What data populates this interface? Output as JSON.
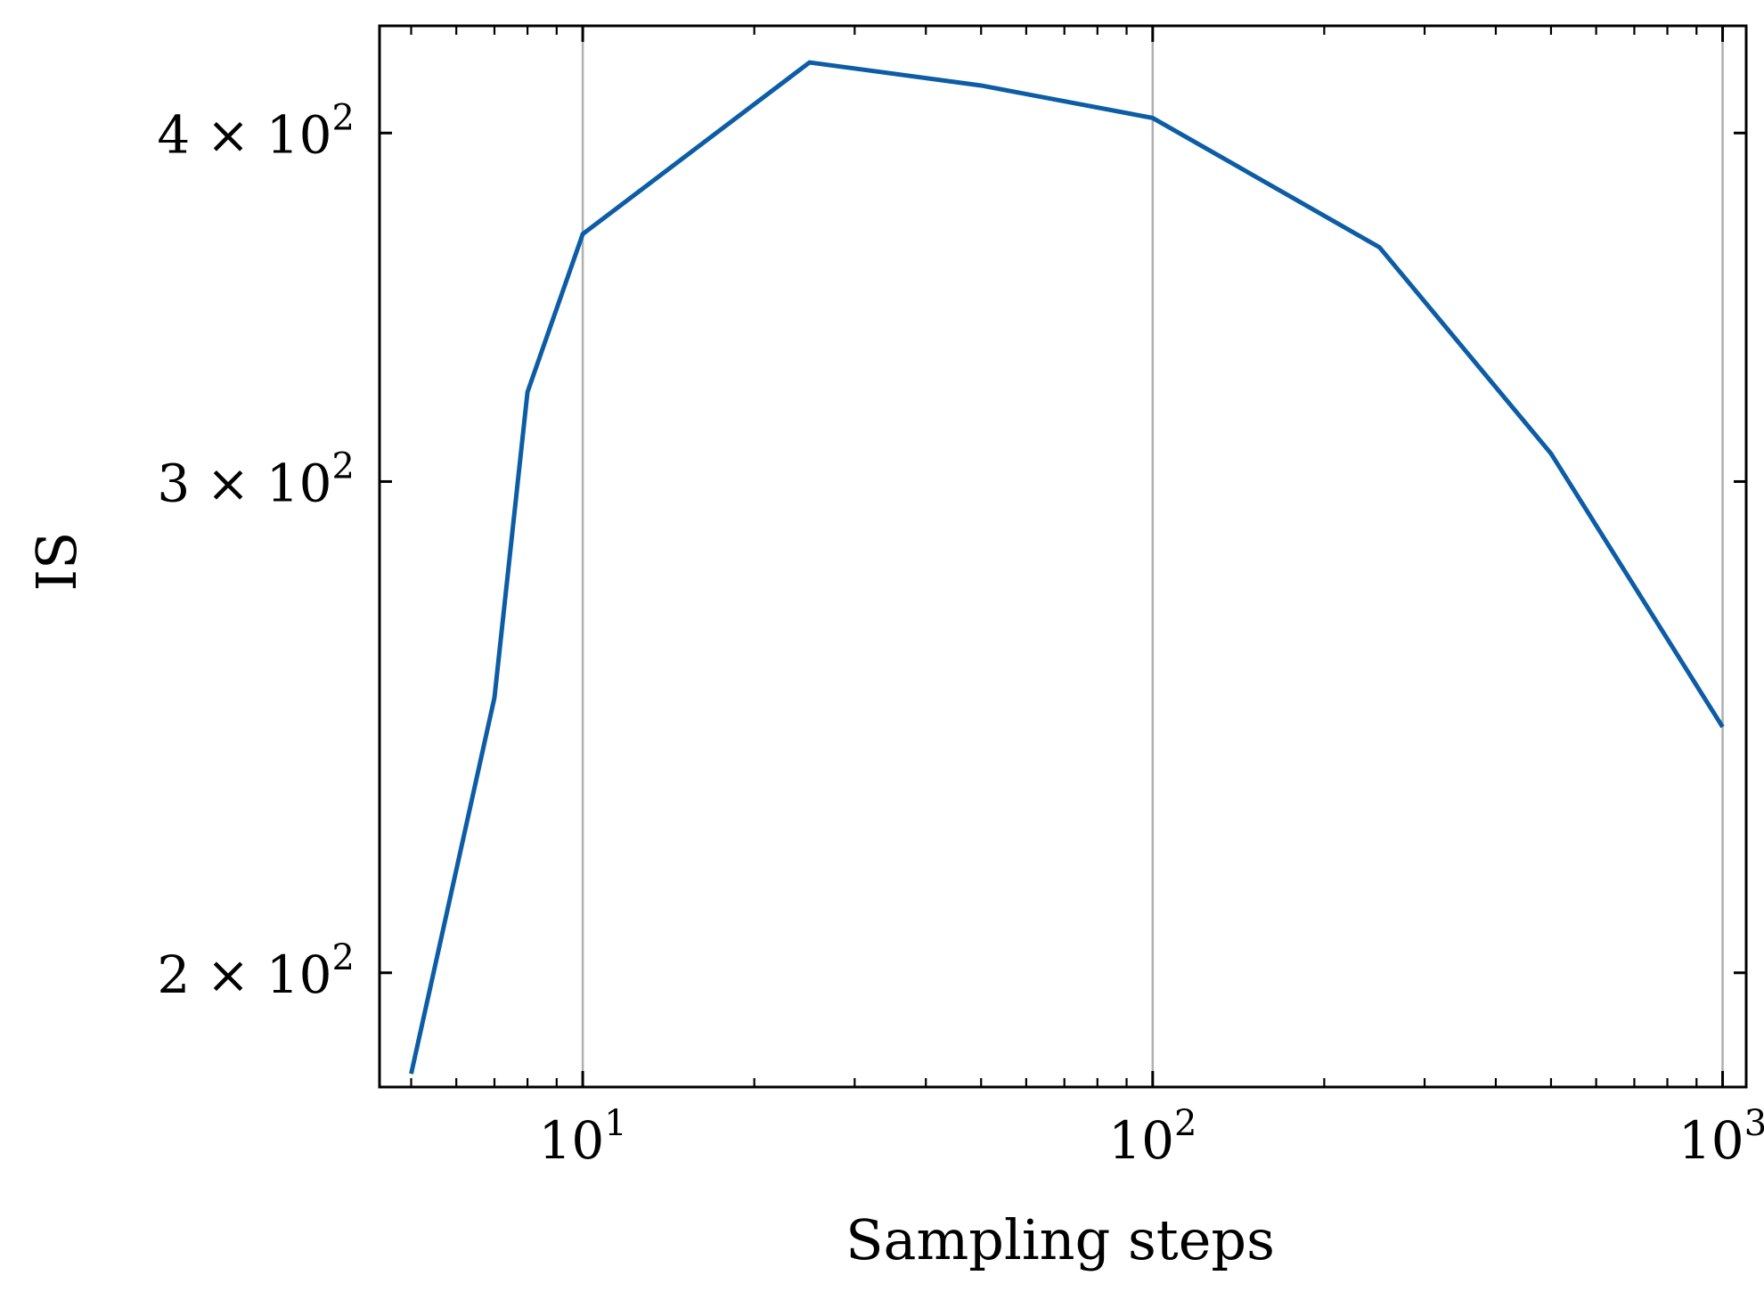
{
  "chart_data": {
    "type": "line",
    "title": "",
    "xlabel": "Sampling steps",
    "ylabel": "IS",
    "xscale": "log",
    "yscale": "log",
    "xlim": [
      4.4,
      1100
    ],
    "ylim": [
      182,
      437
    ],
    "grid": "vertical major gridlines on x",
    "legend": "none",
    "x_ticks": [
      {
        "value": 10,
        "base": "10",
        "exp": "1"
      },
      {
        "value": 100,
        "base": "10",
        "exp": "2"
      },
      {
        "value": 1000,
        "base": "10",
        "exp": "3"
      }
    ],
    "y_ticks": [
      {
        "value": 200,
        "mantissa": "2",
        "base": "10",
        "exp": "2"
      },
      {
        "value": 300,
        "mantissa": "3",
        "base": "10",
        "exp": "2"
      },
      {
        "value": 400,
        "mantissa": "4",
        "base": "10",
        "exp": "2"
      }
    ],
    "series": [
      {
        "color": "#0c5da5",
        "x": [
          5,
          7,
          8,
          10,
          25,
          50,
          100,
          250,
          500,
          1000
        ],
        "y": [
          184,
          251,
          323,
          368,
          424,
          416,
          405,
          364,
          307,
          245
        ]
      }
    ]
  },
  "colors": {
    "line": "#0c5da5",
    "grid": "#b0b0b0",
    "axes": "#000000"
  }
}
